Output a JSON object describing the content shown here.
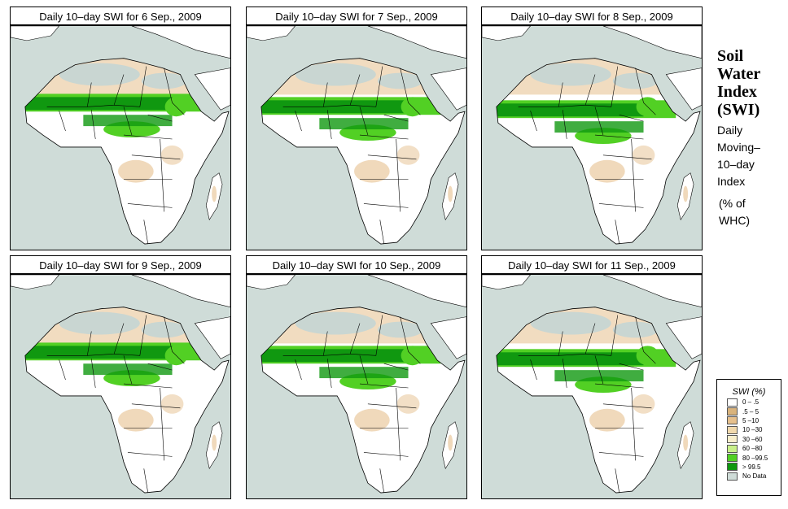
{
  "panels": [
    {
      "title": "Daily 10–day SWI for  6 Sep., 2009"
    },
    {
      "title": "Daily 10–day SWI for  7 Sep., 2009"
    },
    {
      "title": "Daily 10–day SWI for  8 Sep., 2009"
    },
    {
      "title": "Daily 10–day SWI for  9 Sep., 2009"
    },
    {
      "title": "Daily 10–day SWI for  10 Sep., 2009"
    },
    {
      "title": "Daily 10–day SWI for  11 Sep., 2009"
    }
  ],
  "side": {
    "title_lines": [
      "Soil",
      "Water",
      "Index",
      "(SWI)"
    ],
    "sub_lines": [
      "Daily",
      "Moving–",
      "10–day",
      "Index"
    ],
    "unit_lines": [
      "(% of",
      "WHC)"
    ]
  },
  "legend": {
    "title": "SWI (%)",
    "items": [
      {
        "label": "0 – .5",
        "color": "#ffffff"
      },
      {
        "label": ".5 – 5",
        "color": "#d9b37c"
      },
      {
        "label": "5 –10",
        "color": "#e6c08d"
      },
      {
        "label": "10 –30",
        "color": "#f1d9ad"
      },
      {
        "label": "30 –60",
        "color": "#f8eecb"
      },
      {
        "label": "60 –80",
        "color": "#c9f08a"
      },
      {
        "label": "80 –99.5",
        "color": "#52d024"
      },
      {
        "label": "> 99.5",
        "color": "#109810"
      },
      {
        "label": "No Data",
        "color": "#cfdcd8"
      }
    ]
  },
  "colors": {
    "sea": "#cfdcd8",
    "land": "#ffffff",
    "dry": "#e6c08d",
    "wet": "#52d024",
    "very_wet": "#109810",
    "no_data": "#c9d6d2"
  }
}
